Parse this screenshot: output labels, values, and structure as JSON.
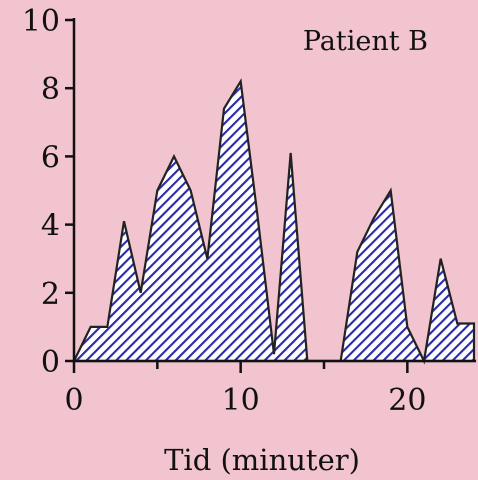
{
  "chart_data": {
    "type": "area",
    "title": "Patient B",
    "xlabel": "Tid (minuter)",
    "ylabel": "",
    "xlim": [
      0,
      24
    ],
    "ylim": [
      0,
      10
    ],
    "xticks": [
      0,
      10,
      20
    ],
    "xminor": [
      5,
      15
    ],
    "yticks": [
      0,
      2,
      4,
      6,
      8,
      10
    ],
    "grid": false,
    "colors": {
      "fill_hatch": "#2a2aa8",
      "fill_bg": "#ffffff",
      "outline": "#222222",
      "background": "#f2c4cf"
    },
    "series": [
      {
        "x": [
          0,
          1,
          2,
          3,
          4,
          5,
          6,
          7,
          8,
          9,
          10,
          11,
          12,
          13,
          14,
          15,
          16,
          17,
          18,
          19,
          20,
          21,
          22,
          23,
          24
        ],
        "values": [
          0,
          1,
          1,
          4.1,
          2,
          5,
          6,
          5,
          3,
          7.4,
          8.2,
          4.3,
          0.2,
          6.1,
          0,
          0,
          0,
          3.2,
          4.2,
          5,
          1,
          0,
          3,
          1.1,
          1.1
        ]
      }
    ]
  }
}
